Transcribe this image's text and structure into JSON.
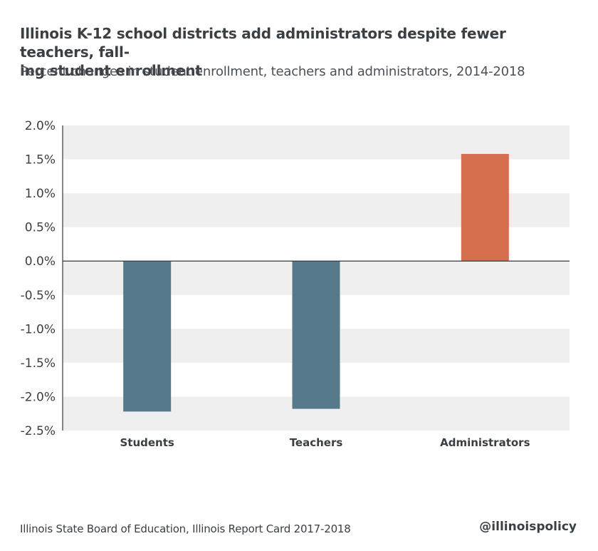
{
  "chart_data": {
    "type": "bar",
    "title": "Illinois K-12 school districts add administrators despite fewer teachers, falling student enrollment",
    "title_lines": [
      "Illinois K-12 school districts add administrators despite fewer teachers, fall-",
      "ing student enrollment"
    ],
    "subtitle": "Percent changes  in student enrollment, teachers and administrators, 2014-2018",
    "categories": [
      "Students",
      "Teachers",
      "Administrators"
    ],
    "values": [
      -2.22,
      -2.18,
      1.58
    ],
    "bar_colors": [
      "#57798c",
      "#57798c",
      "#d46e4c"
    ],
    "ylim": [
      -2.5,
      2.0
    ],
    "yticks": [
      2.0,
      1.5,
      1.0,
      0.5,
      0.0,
      -0.5,
      -1.0,
      -1.5,
      -2.0,
      -2.5
    ],
    "ytick_labels": [
      "2.0%",
      "1.5%",
      "1.0%",
      "0.5%",
      "0.0%",
      "-0.5%",
      "-1.0%",
      "-1.5%",
      "-2.0%",
      "-2.5%"
    ],
    "xlabel": "",
    "ylabel": "",
    "grid": "alternating horizontal bands",
    "band_color": "#efefef",
    "legend": "none"
  },
  "footer": {
    "source": "Illinois State Board of Education, Illinois Report Card 2017-2018",
    "handle": "@illinoispolicy"
  }
}
